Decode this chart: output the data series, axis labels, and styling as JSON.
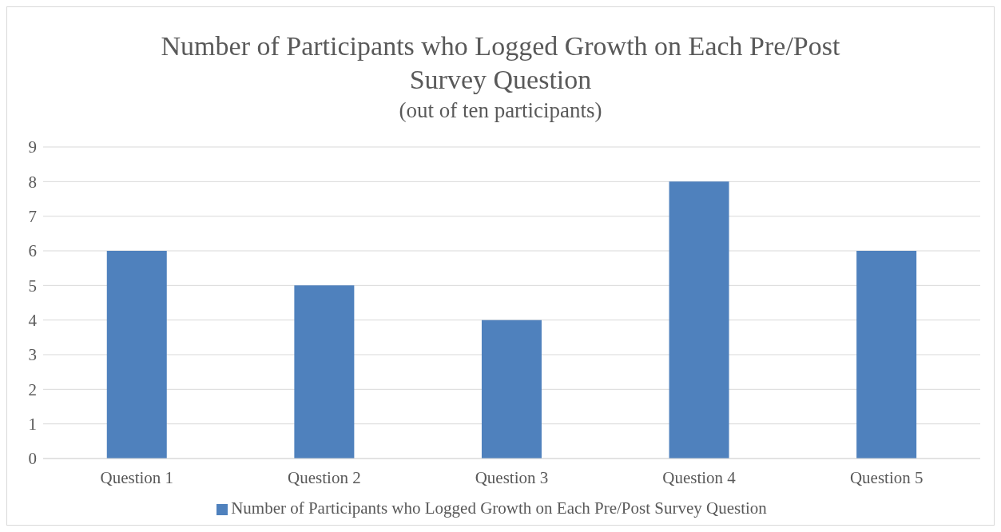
{
  "chart_data": {
    "type": "bar",
    "title": "Number of Participants who Logged Growth on Each Pre/Post Survey Question",
    "subtitle": "(out of ten participants)",
    "categories": [
      "Question 1",
      "Question 2",
      "Question 3",
      "Question 4",
      "Question 5"
    ],
    "series": [
      {
        "name": "Number of Participants who Logged Growth on Each Pre/Post Survey Question",
        "color": "#4f81bd",
        "values": [
          6,
          5,
          4,
          8,
          6
        ]
      }
    ],
    "ylim": [
      0,
      9
    ],
    "yticks": [
      0,
      1,
      2,
      3,
      4,
      5,
      6,
      7,
      8,
      9
    ],
    "grid": "y",
    "legend": "bottom"
  }
}
